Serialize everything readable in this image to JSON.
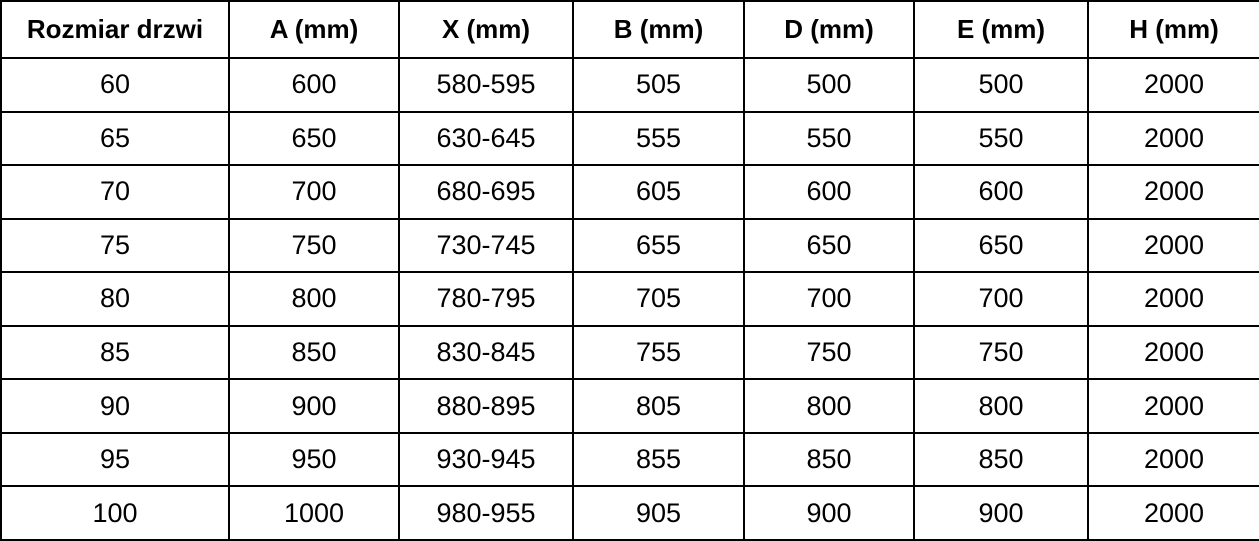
{
  "chart_data": {
    "type": "table",
    "columns": [
      "Rozmiar drzwi",
      "A (mm)",
      "X (mm)",
      "B (mm)",
      "D (mm)",
      "E (mm)",
      "H (mm)"
    ],
    "rows": [
      [
        "60",
        "600",
        "580-595",
        "505",
        "500",
        "500",
        "2000"
      ],
      [
        "65",
        "650",
        "630-645",
        "555",
        "550",
        "550",
        "2000"
      ],
      [
        "70",
        "700",
        "680-695",
        "605",
        "600",
        "600",
        "2000"
      ],
      [
        "75",
        "750",
        "730-745",
        "655",
        "650",
        "650",
        "2000"
      ],
      [
        "80",
        "800",
        "780-795",
        "705",
        "700",
        "700",
        "2000"
      ],
      [
        "85",
        "850",
        "830-845",
        "755",
        "750",
        "750",
        "2000"
      ],
      [
        "90",
        "900",
        "880-895",
        "805",
        "800",
        "800",
        "2000"
      ],
      [
        "95",
        "950",
        "930-945",
        "855",
        "850",
        "850",
        "2000"
      ],
      [
        "100",
        "1000",
        "980-955",
        "905",
        "900",
        "900",
        "2000"
      ]
    ]
  },
  "colors": {
    "border": "#000000",
    "text": "#000000",
    "background": "#ffffff"
  }
}
